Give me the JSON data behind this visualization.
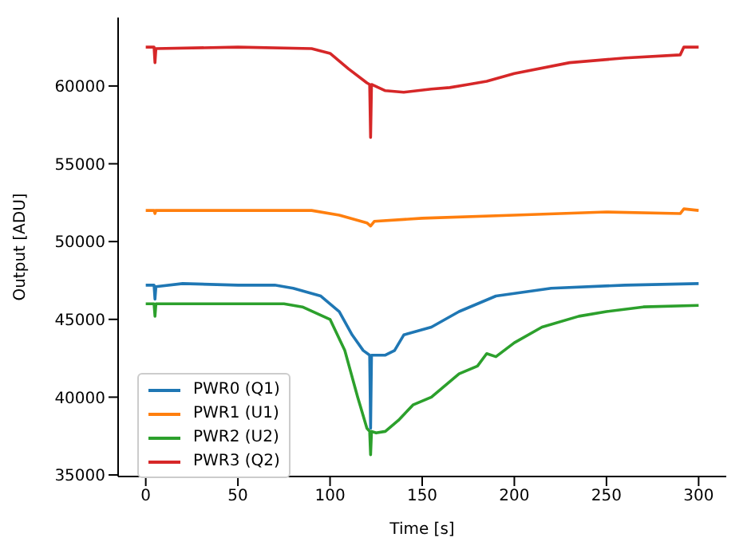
{
  "chart_data": {
    "type": "line",
    "xlabel": "Time [s]",
    "ylabel": "Output [ADU]",
    "xlim": [
      -15,
      315
    ],
    "ylim": [
      34900,
      64400
    ],
    "xticks": [
      0,
      50,
      100,
      150,
      200,
      250,
      300
    ],
    "yticks": [
      35000,
      40000,
      45000,
      50000,
      55000,
      60000
    ],
    "grid": false,
    "legend": "bottom left",
    "marker": "none",
    "line_style": "solid",
    "series": [
      {
        "name": "PWR0 (Q1)",
        "color": "#1f77b4",
        "x": [
          0,
          4.5,
          5,
          5.5,
          20,
          50,
          70,
          80,
          95,
          105,
          112,
          118,
          121.5,
          122,
          122.5,
          130,
          135,
          140,
          155,
          170,
          190,
          220,
          260,
          300
        ],
        "values": [
          47200,
          47200,
          46300,
          47100,
          47300,
          47200,
          47200,
          47000,
          46500,
          45500,
          44000,
          43000,
          42700,
          38000,
          42700,
          42700,
          43000,
          44000,
          44500,
          45500,
          46500,
          47000,
          47200,
          47300
        ]
      },
      {
        "name": "PWR1 (U1)",
        "color": "#ff7f0e",
        "x": [
          0,
          4.5,
          5,
          5.5,
          50,
          90,
          105,
          120,
          122,
          124,
          150,
          200,
          250,
          290,
          292,
          300
        ],
        "values": [
          52000,
          52000,
          51800,
          52000,
          52000,
          52000,
          51700,
          51200,
          51000,
          51300,
          51500,
          51700,
          51900,
          51800,
          52100,
          52000
        ]
      },
      {
        "name": "PWR2 (U2)",
        "color": "#2ca02c",
        "x": [
          0,
          4.5,
          5,
          5.5,
          40,
          75,
          85,
          100,
          108,
          115,
          120,
          121.5,
          122,
          122.5,
          125,
          130,
          137,
          145,
          155,
          170,
          180,
          185,
          190,
          200,
          215,
          235,
          250,
          270,
          300
        ],
        "values": [
          46000,
          46000,
          45200,
          46000,
          46000,
          46000,
          45800,
          45000,
          43000,
          40000,
          38000,
          37800,
          36300,
          37800,
          37700,
          37800,
          38500,
          39500,
          40000,
          41500,
          42000,
          42800,
          42600,
          43500,
          44500,
          45200,
          45500,
          45800,
          45900
        ]
      },
      {
        "name": "PWR3 (Q2)",
        "color": "#d62728",
        "x": [
          0,
          4.5,
          5,
          5.5,
          50,
          90,
          100,
          110,
          120,
          121.5,
          122,
          122.5,
          130,
          140,
          155,
          165,
          175,
          185,
          200,
          230,
          260,
          290,
          292,
          300
        ],
        "values": [
          62500,
          62500,
          61500,
          62400,
          62500,
          62400,
          62100,
          61100,
          60200,
          60100,
          56700,
          60100,
          59700,
          59600,
          59800,
          59900,
          60100,
          60300,
          60800,
          61500,
          61800,
          62000,
          62500,
          62500
        ]
      }
    ]
  }
}
